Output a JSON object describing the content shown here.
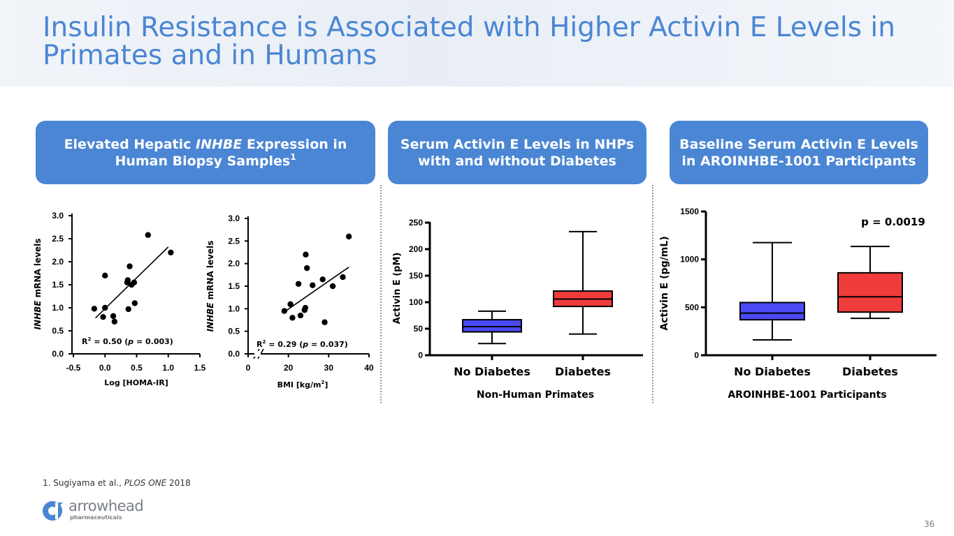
{
  "title": "Insulin Resistance is Associated with Higher Activin E Levels in Primates and in Humans",
  "panels": [
    {
      "pre": "Elevated Hepatic ",
      "italic": "INHBE",
      "post": " Expression in Human Biopsy Samples",
      "sup": "1"
    },
    {
      "pre": "Serum Activin E Levels in NHPs with and without Diabetes",
      "italic": "",
      "post": "",
      "sup": ""
    },
    {
      "pre": "Baseline Serum Activin E Levels in AROINHBE-1001 Participants",
      "italic": "",
      "post": "",
      "sup": ""
    }
  ],
  "footnote": {
    "pre": "1. Sugiyama et al., ",
    "italic": "PLOS ONE",
    "post": " 2018"
  },
  "logo": {
    "word": "arrowhead",
    "sub": "pharmaceuticals"
  },
  "page_number": "36",
  "colors": {
    "accent": "#4a86d4",
    "no_diabetes": "#4a4af5",
    "diabetes": "#f03b3b"
  },
  "chart_data": [
    {
      "type": "scatter",
      "ylabel_italic": "INHBE",
      "ylabel_rest": " mRNA levels",
      "xlabel": "Log [HOMA-IR]",
      "xlim": [
        -0.5,
        1.5
      ],
      "ylim": [
        0.0,
        3.0
      ],
      "xticks": [
        "-0.5",
        "0.0",
        "0.5",
        "1.0",
        "1.5"
      ],
      "yticks": [
        "0.0",
        "0.5",
        "1.0",
        "1.5",
        "2.0",
        "2.5",
        "3.0"
      ],
      "r2_text": "R",
      "r2_sup": "2",
      "r2_mid": " = 0.50 (",
      "p_italic": "p",
      "p_rest": " = 0.003)",
      "fit": [
        [
          -0.15,
          0.78
        ],
        [
          1.0,
          2.32
        ]
      ],
      "points": [
        [
          -0.17,
          0.98
        ],
        [
          -0.03,
          0.8
        ],
        [
          0.0,
          1.0
        ],
        [
          0.0,
          1.7
        ],
        [
          0.13,
          0.82
        ],
        [
          0.15,
          0.7
        ],
        [
          0.35,
          1.55
        ],
        [
          0.36,
          1.6
        ],
        [
          0.37,
          0.97
        ],
        [
          0.39,
          1.9
        ],
        [
          0.42,
          1.5
        ],
        [
          0.46,
          1.55
        ],
        [
          0.47,
          1.1
        ],
        [
          0.68,
          2.58
        ],
        [
          1.04,
          2.2
        ]
      ]
    },
    {
      "type": "scatter",
      "ylabel_italic": "INHBE",
      "ylabel_rest": " mRNA levels",
      "xlabel_pre": "BMI [kg/m",
      "xlabel_sup": "2",
      "xlabel_post": "]",
      "xlim": [
        10,
        40
      ],
      "axis_break": true,
      "ylim": [
        0.0,
        3.0
      ],
      "xticks": [
        "0",
        "20",
        "30",
        "40"
      ],
      "yticks": [
        "0.0",
        "0.5",
        "1.0",
        "1.5",
        "2.0",
        "2.5",
        "3.0"
      ],
      "r2_text": "R",
      "r2_sup": "2",
      "r2_mid": " = 0.29 (",
      "p_italic": "p",
      "p_rest": " = 0.037)",
      "fit": [
        [
          18.5,
          0.9
        ],
        [
          35.0,
          1.92
        ]
      ],
      "points": [
        [
          19.0,
          0.95
        ],
        [
          20.5,
          1.1
        ],
        [
          21.0,
          0.8
        ],
        [
          22.5,
          1.55
        ],
        [
          23.0,
          0.85
        ],
        [
          24.0,
          0.97
        ],
        [
          24.2,
          1.02
        ],
        [
          24.3,
          2.2
        ],
        [
          24.6,
          1.9
        ],
        [
          26.0,
          1.52
        ],
        [
          28.5,
          1.65
        ],
        [
          29.0,
          0.7
        ],
        [
          31.0,
          1.5
        ],
        [
          33.5,
          1.7
        ],
        [
          35.0,
          2.6
        ]
      ]
    },
    {
      "type": "box",
      "ylabel": "Activin E (pM)",
      "xlabel": "Non-Human Primates",
      "ylim": [
        0,
        250
      ],
      "yticks": [
        "0",
        "50",
        "100",
        "150",
        "200",
        "250"
      ],
      "categories": [
        "No Diabetes",
        "Diabetes"
      ],
      "boxes": [
        {
          "min": 22,
          "q1": 44,
          "median": 54,
          "q3": 67,
          "max": 83
        },
        {
          "min": 40,
          "q1": 92,
          "median": 106,
          "q3": 121,
          "max": 233
        }
      ]
    },
    {
      "type": "box",
      "ylabel": "Activin E (pg/mL)",
      "xlabel": "AROINHBE-1001 Participants",
      "ylim": [
        0,
        1500
      ],
      "yticks": [
        "0",
        "500",
        "1000",
        "1500"
      ],
      "categories": [
        "No Diabetes",
        "Diabetes"
      ],
      "annotation": "p = 0.0019",
      "boxes": [
        {
          "min": 160,
          "q1": 370,
          "median": 440,
          "q3": 550,
          "max": 1175
        },
        {
          "min": 385,
          "q1": 450,
          "median": 610,
          "q3": 860,
          "max": 1135
        }
      ]
    }
  ]
}
